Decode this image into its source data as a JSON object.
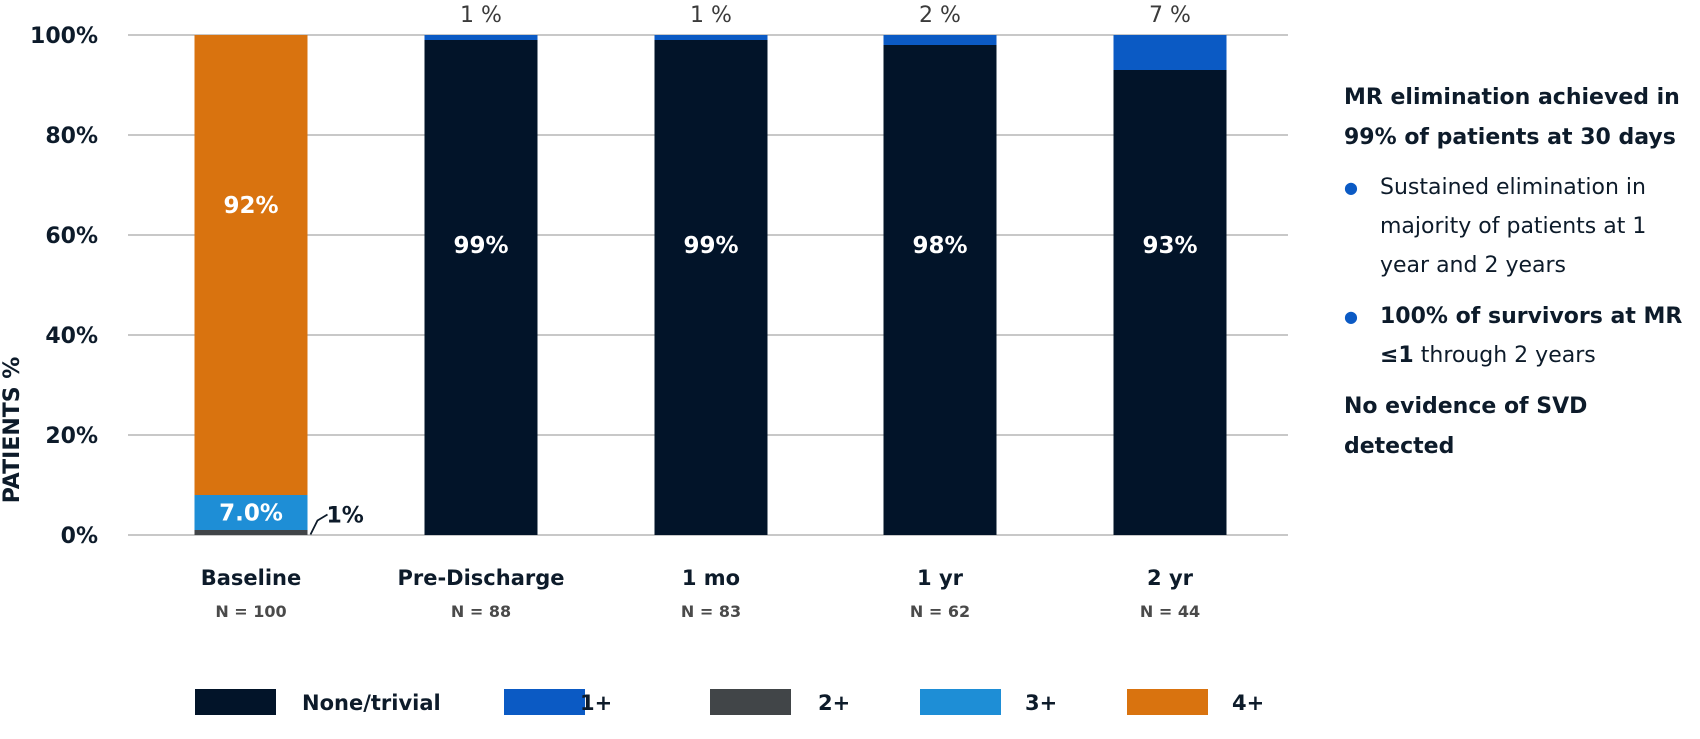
{
  "chart_data": {
    "type": "bar",
    "stacked": true,
    "ylabel": "PATIENTS %",
    "ylim": [
      0,
      100
    ],
    "yticks": [
      "0%",
      "20%",
      "40%",
      "60%",
      "80%",
      "100%"
    ],
    "grid": true,
    "categories": [
      "Baseline",
      "Pre-Discharge",
      "1 mo",
      "1 yr",
      "2 yr"
    ],
    "n_labels": [
      "N = 100",
      "N = 88",
      "N = 83",
      "N = 62",
      "N = 44"
    ],
    "series": [
      {
        "name": "None/trivial",
        "color": "#021429",
        "values": [
          0,
          99,
          99,
          98,
          93
        ]
      },
      {
        "name": "1+",
        "color": "#0b5ac4",
        "values": [
          0,
          1,
          1,
          2,
          7
        ]
      },
      {
        "name": "2+",
        "color": "#414548",
        "values": [
          1,
          0,
          0,
          0,
          0
        ]
      },
      {
        "name": "3+",
        "color": "#1e8ed6",
        "values": [
          7,
          0,
          0,
          0,
          0
        ]
      },
      {
        "name": "4+",
        "color": "#d9730f",
        "values": [
          92,
          0,
          0,
          0,
          0
        ]
      }
    ],
    "bar_labels": [
      {
        "category": 0,
        "series": 4,
        "text": "92%"
      },
      {
        "category": 0,
        "series": 3,
        "text": "7.0%"
      },
      {
        "category": 0,
        "series": 2,
        "text": "1%",
        "callout": true
      },
      {
        "category": 1,
        "series": 0,
        "text": "99%"
      },
      {
        "category": 2,
        "series": 0,
        "text": "99%"
      },
      {
        "category": 3,
        "series": 0,
        "text": "98%"
      },
      {
        "category": 4,
        "series": 0,
        "text": "93%"
      }
    ],
    "top_labels": [
      "",
      "1 %",
      "1 %",
      "2 %",
      "7 %"
    ],
    "legend": {
      "placement": "bottom"
    }
  },
  "sidebar": {
    "headline": "MR elimination achieved in 99% of patients at 30 days",
    "bullets": [
      {
        "bold": "",
        "text": "Sustained elimination in majority of patients at 1 year and 2 years"
      },
      {
        "bold": "100% of survivors at MR ≤1",
        "text": " through 2 years"
      }
    ],
    "footnote": "No evidence of SVD detected",
    "bullet_color": "#0b5ac4"
  }
}
